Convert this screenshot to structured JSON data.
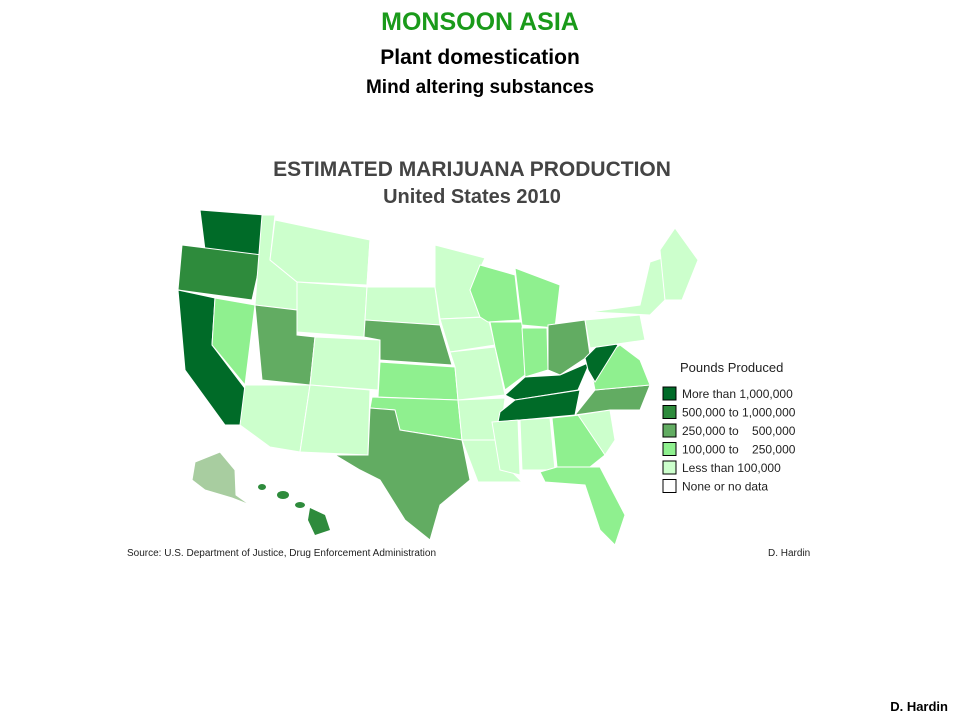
{
  "header": {
    "title": "MONSOON ASIA",
    "subtitle": "Plant domestication",
    "subtitle2": "Mind altering substances"
  },
  "map": {
    "title": "ESTIMATED MARIJUANA PRODUCTION",
    "subtitle": "United States 2010",
    "legend": {
      "title": "Pounds Produced",
      "items": [
        {
          "label": "More than 1,000,000",
          "color": "#006b28"
        },
        {
          "label": "500,000 to 1,000,000",
          "color": "#2e8b3c"
        },
        {
          "label": "250,000 to    500,000",
          "color": "#62ac62"
        },
        {
          "label": "100,000 to    250,000",
          "color": "#8ff08f"
        },
        {
          "label": "Less than 100,000",
          "color": "#ccffcc"
        },
        {
          "label": "None or no data",
          "color": "#ffffff"
        }
      ]
    },
    "source": "Source: U.S. Department of Justice, Drug Enforcement Administration",
    "credit": "D. Hardin"
  },
  "footer": {
    "credit": "D. Hardin"
  }
}
